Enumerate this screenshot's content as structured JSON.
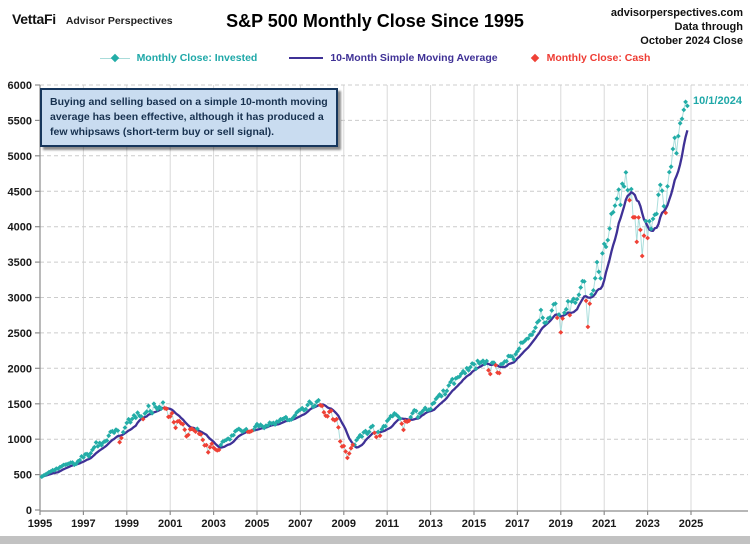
{
  "header": {
    "logo_primary": "VettaFi",
    "logo_secondary": "Advisor Perspectives",
    "source_site": "advisorperspectives.com",
    "source_line2": "Data through",
    "source_line3": "October 2024 Close",
    "title": "S&P 500 Monthly Close Since 1995"
  },
  "legend": [
    {
      "label": "Monthly Close: Invested",
      "color": "#1FA8A8",
      "marker": "diamond-with-line"
    },
    {
      "label": "10-Month Simple Moving Average",
      "color": "#3F3196",
      "marker": "line"
    },
    {
      "label": "Monthly Close: Cash",
      "color": "#EE3B33",
      "marker": "diamond"
    }
  ],
  "annotation": {
    "lines": [
      "Buying and selling based on a simple 10-month moving",
      "average has been effective, although it has produced a",
      "few whipsaws (short-term buy or sell signal)."
    ]
  },
  "chart_data": {
    "type": "scatter+line",
    "title": "S&P 500 Monthly Close Since 1995",
    "x_start": "1995-01",
    "x_end": "2024-10",
    "last_point_label": "10/1/2024",
    "sma_window_months": 10,
    "signal_rule": "point shown as Cash when monthly close is below the 10-month simple moving average",
    "ylim": [
      0,
      6000
    ],
    "y_ticks": [
      0,
      500,
      1000,
      1500,
      2000,
      2500,
      3000,
      3500,
      4000,
      4500,
      5000,
      5500,
      6000
    ],
    "x_tick_years": [
      1995,
      1997,
      1999,
      2001,
      2003,
      2005,
      2007,
      2009,
      2011,
      2013,
      2015,
      2017,
      2019,
      2021,
      2023,
      2025
    ],
    "grid": {
      "horizontal": "dashed",
      "vertical": "solid"
    },
    "monthly_closes": [
      470,
      487,
      501,
      515,
      533,
      545,
      562,
      562,
      584,
      582,
      605,
      616,
      636,
      640,
      646,
      654,
      669,
      671,
      640,
      652,
      687,
      705,
      757,
      741,
      786,
      791,
      757,
      801,
      848,
      885,
      954,
      899,
      947,
      915,
      955,
      970,
      980,
      1049,
      1102,
      1112,
      1091,
      1134,
      1121,
      957,
      1017,
      1099,
      1164,
      1229,
      1280,
      1238,
      1286,
      1335,
      1302,
      1373,
      1329,
      1320,
      1283,
      1363,
      1389,
      1469,
      1394,
      1366,
      1499,
      1452,
      1421,
      1455,
      1431,
      1518,
      1437,
      1429,
      1315,
      1320,
      1366,
      1240,
      1160,
      1249,
      1256,
      1224,
      1211,
      1134,
      1041,
      1060,
      1139,
      1148,
      1130,
      1107,
      1147,
      1077,
      1067,
      990,
      912,
      916,
      815,
      886,
      936,
      880,
      856,
      841,
      848,
      917,
      964,
      975,
      990,
      1008,
      996,
      1051,
      1058,
      1112,
      1131,
      1145,
      1126,
      1107,
      1121,
      1141,
      1102,
      1104,
      1115,
      1130,
      1174,
      1212,
      1181,
      1204,
      1181,
      1157,
      1192,
      1191,
      1234,
      1220,
      1229,
      1207,
      1249,
      1248,
      1280,
      1281,
      1295,
      1311,
      1270,
      1270,
      1277,
      1304,
      1336,
      1378,
      1401,
      1418,
      1438,
      1407,
      1421,
      1482,
      1531,
      1503,
      1455,
      1474,
      1527,
      1549,
      1481,
      1468,
      1379,
      1331,
      1323,
      1386,
      1400,
      1280,
      1267,
      1283,
      1166,
      969,
      896,
      903,
      826,
      735,
      798,
      873,
      919,
      919,
      987,
      1021,
      1057,
      1036,
      1096,
      1115,
      1074,
      1104,
      1169,
      1187,
      1089,
      1031,
      1102,
      1049,
      1141,
      1183,
      1181,
      1258,
      1286,
      1327,
      1326,
      1364,
      1345,
      1321,
      1292,
      1219,
      1131,
      1253,
      1247,
      1258,
      1312,
      1366,
      1408,
      1398,
      1310,
      1362,
      1379,
      1407,
      1441,
      1412,
      1416,
      1426,
      1498,
      1515,
      1569,
      1598,
      1631,
      1606,
      1686,
      1633,
      1682,
      1757,
      1806,
      1848,
      1783,
      1859,
      1872,
      1884,
      1924,
      1960,
      1931,
      2003,
      1972,
      2018,
      2068,
      2059,
      1995,
      2105,
      2068,
      2086,
      2107,
      2063,
      2104,
      1972,
      1920,
      2079,
      2080,
      2044,
      1940,
      1932,
      2060,
      2065,
      2097,
      2099,
      2174,
      2171,
      2168,
      2126,
      2199,
      2239,
      2279,
      2364,
      2363,
      2384,
      2412,
      2423,
      2470,
      2472,
      2519,
      2575,
      2648,
      2674,
      2824,
      2714,
      2641,
      2648,
      2705,
      2718,
      2816,
      2902,
      2914,
      2712,
      2760,
      2507,
      2704,
      2784,
      2834,
      2946,
      2752,
      2942,
      2980,
      2926,
      2977,
      3038,
      3141,
      3231,
      3226,
      2954,
      2585,
      2912,
      3044,
      3100,
      3271,
      3500,
      3363,
      3270,
      3622,
      3756,
      3714,
      3811,
      3973,
      4181,
      4204,
      4298,
      4395,
      4523,
      4308,
      4605,
      4567,
      4766,
      4516,
      4374,
      4530,
      4132,
      4132,
      3785,
      4130,
      3955,
      3586,
      3872,
      4080,
      3840,
      4077,
      3970,
      4109,
      4169,
      4180,
      4450,
      4589,
      4508,
      4288,
      4194,
      4568,
      4770,
      4846,
      5096,
      5254,
      5036,
      5278,
      5460,
      5522,
      5648,
      5762,
      5705
    ]
  }
}
